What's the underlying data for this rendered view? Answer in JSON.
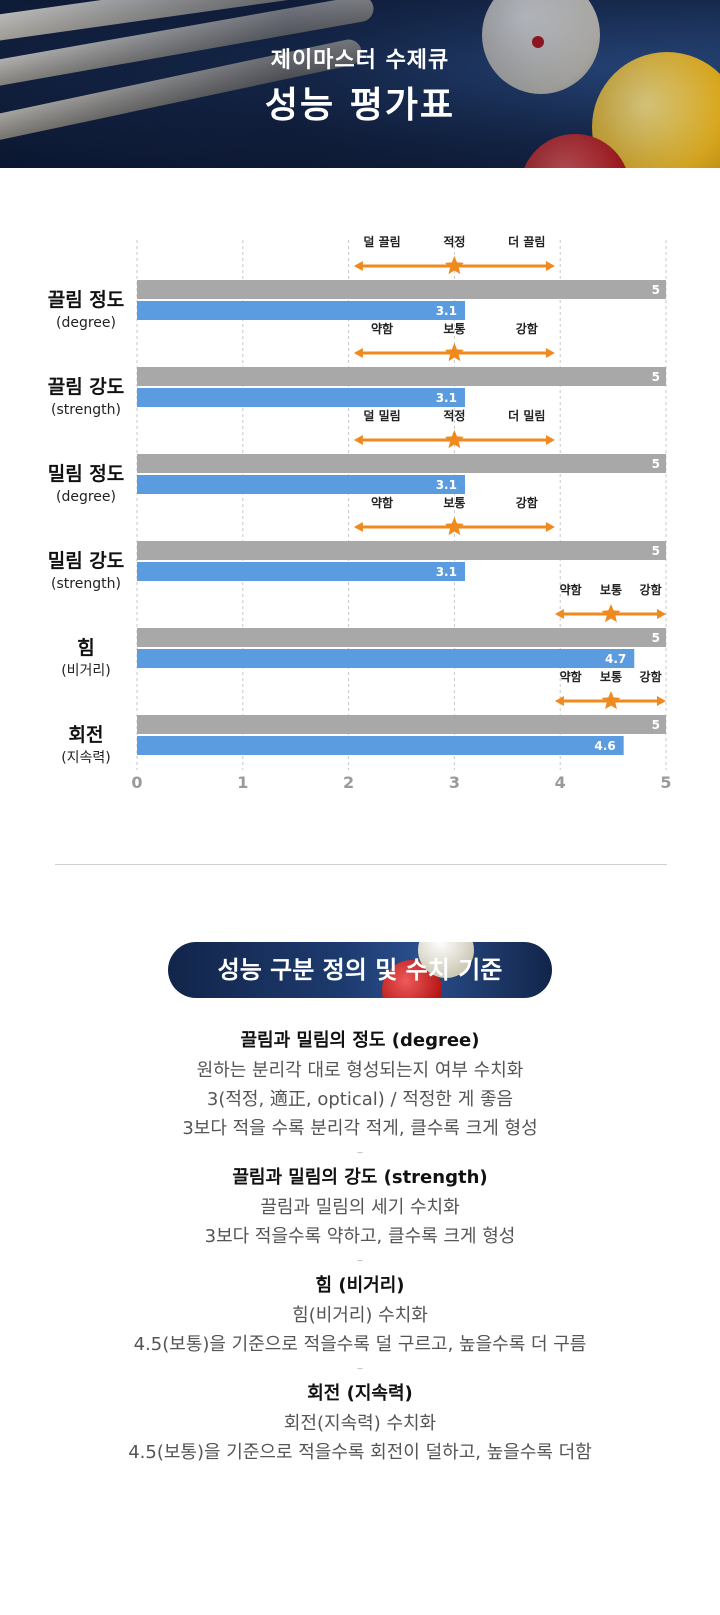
{
  "header": {
    "line1": "제이마스터 수제큐",
    "line2": "성능 평가표"
  },
  "chart_data": {
    "type": "bar",
    "orientation": "horizontal",
    "xlim": [
      0,
      5
    ],
    "x_ticks": [
      "0",
      "1",
      "2",
      "3",
      "4",
      "5"
    ],
    "grid": true,
    "colors": {
      "max_bar": "#a8a8a8",
      "value_bar": "#5b9ce0",
      "scale_arrow": "#f0891e"
    },
    "categories": [
      {
        "label": "끌림 정도",
        "sub": "(degree)",
        "max": 5,
        "value": 3.1,
        "scale_labels": [
          "덜 끌림",
          "적정",
          "더 끌림"
        ],
        "scale_range": [
          2.05,
          3.95
        ],
        "star": 3.0
      },
      {
        "label": "끌림 강도",
        "sub": "(strength)",
        "max": 5,
        "value": 3.1,
        "scale_labels": [
          "약함",
          "보통",
          "강함"
        ],
        "scale_range": [
          2.05,
          3.95
        ],
        "star": 3.0
      },
      {
        "label": "밀림 정도",
        "sub": "(degree)",
        "max": 5,
        "value": 3.1,
        "scale_labels": [
          "덜 밀림",
          "적정",
          "더 밀림"
        ],
        "scale_range": [
          2.05,
          3.95
        ],
        "star": 3.0
      },
      {
        "label": "밀림 강도",
        "sub": "(strength)",
        "max": 5,
        "value": 3.1,
        "scale_labels": [
          "약함",
          "보통",
          "강함"
        ],
        "scale_range": [
          2.05,
          3.95
        ],
        "star": 3.0
      },
      {
        "label": "힘",
        "sub": "(비거리)",
        "max": 5,
        "value": 4.7,
        "scale_labels": [
          "약함",
          "보통",
          "강함"
        ],
        "scale_range": [
          3.95,
          5.0
        ],
        "star": 4.48
      },
      {
        "label": "회전",
        "sub": "(지속력)",
        "max": 5,
        "value": 4.6,
        "scale_labels": [
          "약함",
          "보통",
          "강함"
        ],
        "scale_range": [
          3.95,
          5.0
        ],
        "star": 4.48
      }
    ]
  },
  "section": {
    "title": "성능 구분 정의 및 수치 기준",
    "blocks": [
      {
        "heading": "끌림과 밀림의 정도 (degree)",
        "lines": [
          "원하는 분리각 대로 형성되는지 여부 수치화",
          "3(적정, 適正, optical) / 적정한 게 좋음",
          "3보다 적을 수록 분리각 적게, 클수록 크게 형성"
        ]
      },
      {
        "heading": "끌림과 밀림의 강도 (strength)",
        "lines": [
          "끌림과 밀림의 세기 수치화",
          "3보다 적을수록 약하고, 클수록 크게 형성"
        ]
      },
      {
        "heading": "힘 (비거리)",
        "lines": [
          "힘(비거리) 수치화",
          "4.5(보통)을 기준으로 적을수록 덜 구르고, 높을수록 더 구름"
        ]
      },
      {
        "heading": "회전 (지속력)",
        "lines": [
          "회전(지속력) 수치화",
          "4.5(보통)을 기준으로 적을수록 회전이 덜하고, 높을수록 더함"
        ]
      }
    ],
    "separator": "–"
  }
}
